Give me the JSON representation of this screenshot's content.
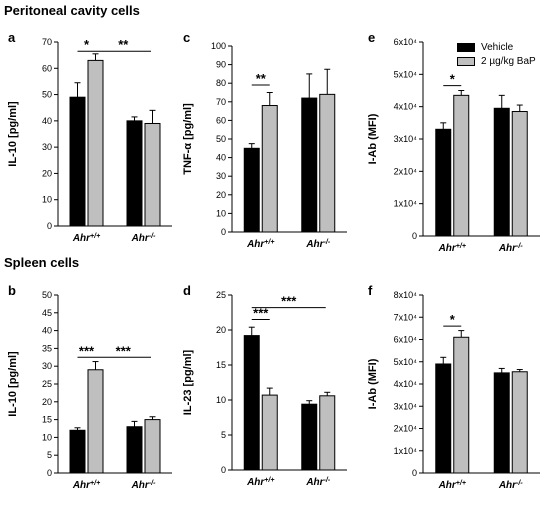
{
  "sections": [
    "Peritoneal cavity cells",
    "Spleen cells"
  ],
  "legend": [
    {
      "label": "Vehicle",
      "color": "#000000"
    },
    {
      "label": "2 µg/kg BaP",
      "color": "#bfbfbf"
    }
  ],
  "chart_data": [
    {
      "id": "a",
      "type": "bar",
      "ylabel": "IL-10 [pg/ml]",
      "ylim": [
        0,
        70
      ],
      "yticks": [
        "0",
        "10",
        "20",
        "30",
        "40",
        "50",
        "60",
        "70"
      ],
      "categories": [
        {
          "pre": "Ahr",
          "sup": "+/+"
        },
        {
          "pre": "Ahr",
          "sup": "-/-"
        }
      ],
      "series": [
        {
          "values": [
            49,
            40
          ],
          "errors": [
            5.5,
            1.5
          ]
        },
        {
          "values": [
            63,
            39
          ],
          "errors": [
            2.5,
            5
          ]
        }
      ],
      "annotations": [
        {
          "label": "*",
          "from": 0,
          "to": 1,
          "y": 66.5
        },
        {
          "label": "**",
          "from": 1,
          "to": 2,
          "y": 66.5
        }
      ]
    },
    {
      "id": "c",
      "type": "bar",
      "ylabel": "TNF-α [pg/ml]",
      "ylim": [
        0,
        100
      ],
      "yticks": [
        "0",
        "10",
        "20",
        "30",
        "40",
        "50",
        "60",
        "70",
        "80",
        "90",
        "100"
      ],
      "categories": [
        {
          "pre": "Ahr",
          "sup": "+/+"
        },
        {
          "pre": "Ahr",
          "sup": "-/-"
        }
      ],
      "series": [
        {
          "values": [
            45,
            72
          ],
          "errors": [
            2.5,
            13
          ]
        },
        {
          "values": [
            68,
            74
          ],
          "errors": [
            7,
            13.5
          ]
        }
      ],
      "annotations": [
        {
          "label": "**",
          "from": 0,
          "to": 1,
          "y": 79
        }
      ]
    },
    {
      "id": "e",
      "type": "bar",
      "ylabel": "I-Ab (MFI)",
      "ylim": [
        0,
        6
      ],
      "yticks": [
        "0",
        "1x10⁴",
        "2x10⁴",
        "3x10⁴",
        "4x10⁴",
        "5x10⁴",
        "6x10⁴"
      ],
      "categories": [
        {
          "pre": "Ahr",
          "sup": "+/+"
        },
        {
          "pre": "Ahr",
          "sup": "-/-"
        }
      ],
      "series": [
        {
          "values": [
            3.3,
            3.95
          ],
          "errors": [
            0.2,
            0.4
          ]
        },
        {
          "values": [
            4.35,
            3.85
          ],
          "errors": [
            0.15,
            0.2
          ]
        }
      ],
      "annotations": [
        {
          "label": "*",
          "from": 0,
          "to": 1,
          "y": 4.65
        }
      ]
    },
    {
      "id": "b",
      "type": "bar",
      "ylabel": "IL-10 [pg/ml]",
      "ylim": [
        0,
        50
      ],
      "yticks": [
        "0",
        "5",
        "10",
        "15",
        "20",
        "25",
        "30",
        "35",
        "40",
        "45",
        "50"
      ],
      "categories": [
        {
          "pre": "Ahr",
          "sup": "+/+"
        },
        {
          "pre": "Ahr",
          "sup": "-/-"
        }
      ],
      "series": [
        {
          "values": [
            12,
            13
          ],
          "errors": [
            0.7,
            1.5
          ]
        },
        {
          "values": [
            29,
            15
          ],
          "errors": [
            2.3,
            0.8
          ]
        }
      ],
      "annotations": [
        {
          "label": "***",
          "from": 0,
          "to": 1,
          "y": 32.5
        },
        {
          "label": "***",
          "from": 1,
          "to": 2,
          "y": 32.5
        }
      ]
    },
    {
      "id": "d",
      "type": "bar",
      "ylabel": "IL-23 [pg/ml]",
      "ylim": [
        0,
        25
      ],
      "yticks": [
        "0",
        "5",
        "10",
        "15",
        "20",
        "25"
      ],
      "categories": [
        {
          "pre": "Ahr",
          "sup": "+/+"
        },
        {
          "pre": "Ahr",
          "sup": "-/-"
        }
      ],
      "series": [
        {
          "values": [
            19.2,
            9.4
          ],
          "errors": [
            1.2,
            0.5
          ]
        },
        {
          "values": [
            10.7,
            10.6
          ],
          "errors": [
            1,
            0.5
          ]
        }
      ],
      "annotations": [
        {
          "label": "***",
          "from": 0,
          "to": 0.5,
          "y": 21.5
        },
        {
          "label": "***",
          "from": 0,
          "to": 1.6,
          "y": 23.2
        }
      ]
    },
    {
      "id": "f",
      "type": "bar",
      "ylabel": "I-Ab (MFI)",
      "ylim": [
        0,
        8
      ],
      "yticks": [
        "0",
        "1x10⁴",
        "2x10⁴",
        "3x10⁴",
        "4x10⁴",
        "5x10⁴",
        "6x10⁴",
        "7x10⁴",
        "8x10⁴"
      ],
      "categories": [
        {
          "pre": "Ahr",
          "sup": "+/+"
        },
        {
          "pre": "Ahr",
          "sup": "-/-"
        }
      ],
      "series": [
        {
          "values": [
            4.9,
            4.5
          ],
          "errors": [
            0.3,
            0.2
          ]
        },
        {
          "values": [
            6.1,
            4.55
          ],
          "errors": [
            0.3,
            0.1
          ]
        }
      ],
      "annotations": [
        {
          "label": "*",
          "from": 0,
          "to": 1,
          "y": 6.6
        }
      ]
    }
  ]
}
